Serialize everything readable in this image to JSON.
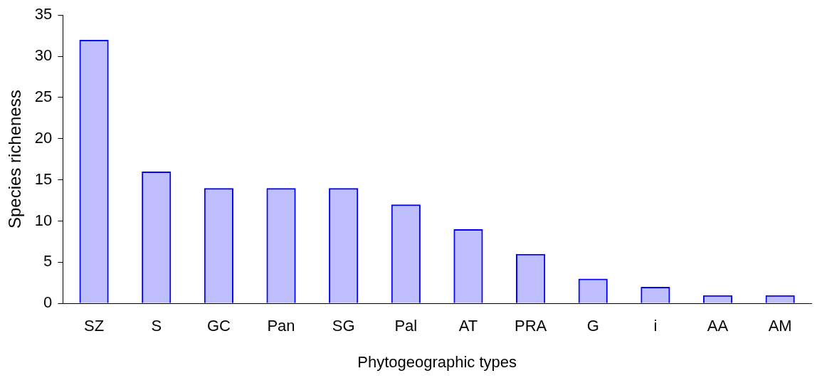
{
  "chart_data": {
    "type": "bar",
    "xlabel": "Phytogeographic types",
    "ylabel": "Species richeness",
    "categories": [
      "SZ",
      "S",
      "GC",
      "Pan",
      "SG",
      "Pal",
      "AT",
      "PRA",
      "G",
      "i",
      "AA",
      "AM"
    ],
    "values": [
      32,
      16,
      14,
      14,
      14,
      12,
      9,
      6,
      3,
      2,
      1,
      1
    ],
    "color": "#0000ff",
    "ylim": [
      0,
      35
    ],
    "yticks": [
      0,
      5,
      10,
      15,
      20,
      25,
      30,
      35
    ],
    "grid": false,
    "legend": false
  }
}
